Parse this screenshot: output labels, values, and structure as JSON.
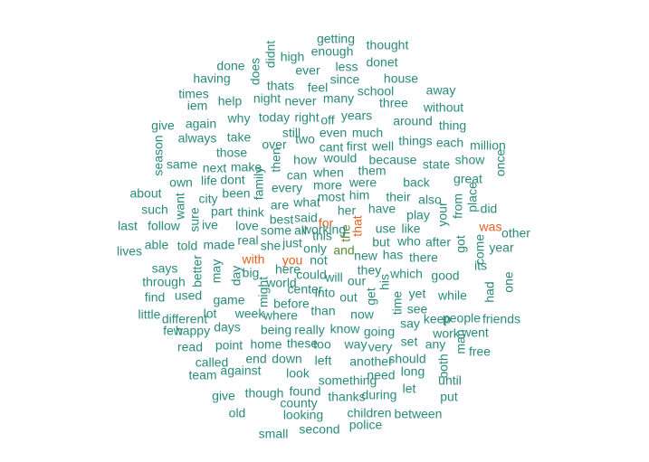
{
  "chart_data": {
    "type": "wordcloud",
    "colors": {
      "primary": "#2a8a7a",
      "secondary": "#5a8a3a",
      "highlight": "#e06020"
    },
    "words": [
      {
        "text": "getting",
        "tier": "primary"
      },
      {
        "text": "didnt",
        "tier": "primary"
      },
      {
        "text": "high",
        "tier": "primary"
      },
      {
        "text": "enough",
        "tier": "primary"
      },
      {
        "text": "thought",
        "tier": "primary"
      },
      {
        "text": "does",
        "tier": "primary"
      },
      {
        "text": "done",
        "tier": "primary"
      },
      {
        "text": "ever",
        "tier": "primary"
      },
      {
        "text": "less",
        "tier": "primary"
      },
      {
        "text": "donet",
        "tier": "primary"
      },
      {
        "text": "having",
        "tier": "primary"
      },
      {
        "text": "thats",
        "tier": "primary"
      },
      {
        "text": "feel",
        "tier": "primary"
      },
      {
        "text": "since",
        "tier": "primary"
      },
      {
        "text": "house",
        "tier": "primary"
      },
      {
        "text": "times",
        "tier": "primary"
      },
      {
        "text": "school",
        "tier": "primary"
      },
      {
        "text": "away",
        "tier": "primary"
      },
      {
        "text": "iem",
        "tier": "primary"
      },
      {
        "text": "help",
        "tier": "primary"
      },
      {
        "text": "night",
        "tier": "primary"
      },
      {
        "text": "never",
        "tier": "primary"
      },
      {
        "text": "many",
        "tier": "primary"
      },
      {
        "text": "three",
        "tier": "primary"
      },
      {
        "text": "without",
        "tier": "primary"
      },
      {
        "text": "why",
        "tier": "primary"
      },
      {
        "text": "today",
        "tier": "primary"
      },
      {
        "text": "right",
        "tier": "primary"
      },
      {
        "text": "off",
        "tier": "primary"
      },
      {
        "text": "years",
        "tier": "primary"
      },
      {
        "text": "give",
        "tier": "primary"
      },
      {
        "text": "again",
        "tier": "primary"
      },
      {
        "text": "around",
        "tier": "primary"
      },
      {
        "text": "thing",
        "tier": "primary"
      },
      {
        "text": "still",
        "tier": "primary"
      },
      {
        "text": "two",
        "tier": "primary"
      },
      {
        "text": "even",
        "tier": "primary"
      },
      {
        "text": "much",
        "tier": "primary"
      },
      {
        "text": "always",
        "tier": "primary"
      },
      {
        "text": "take",
        "tier": "primary"
      },
      {
        "text": "over",
        "tier": "primary"
      },
      {
        "text": "cant",
        "tier": "primary"
      },
      {
        "text": "first",
        "tier": "primary"
      },
      {
        "text": "well",
        "tier": "primary"
      },
      {
        "text": "things",
        "tier": "primary"
      },
      {
        "text": "each",
        "tier": "primary"
      },
      {
        "text": "million",
        "tier": "primary"
      },
      {
        "text": "season",
        "tier": "primary"
      },
      {
        "text": "those",
        "tier": "primary"
      },
      {
        "text": "then",
        "tier": "primary"
      },
      {
        "text": "how",
        "tier": "primary"
      },
      {
        "text": "would",
        "tier": "primary"
      },
      {
        "text": "because",
        "tier": "primary"
      },
      {
        "text": "show",
        "tier": "primary"
      },
      {
        "text": "same",
        "tier": "primary"
      },
      {
        "text": "next",
        "tier": "primary"
      },
      {
        "text": "make",
        "tier": "primary"
      },
      {
        "text": "state",
        "tier": "primary"
      },
      {
        "text": "can",
        "tier": "primary"
      },
      {
        "text": "when",
        "tier": "primary"
      },
      {
        "text": "them",
        "tier": "primary"
      },
      {
        "text": "once",
        "tier": "primary"
      },
      {
        "text": "own",
        "tier": "primary"
      },
      {
        "text": "life",
        "tier": "primary"
      },
      {
        "text": "dont",
        "tier": "primary"
      },
      {
        "text": "were",
        "tier": "primary"
      },
      {
        "text": "back",
        "tier": "primary"
      },
      {
        "text": "great",
        "tier": "primary"
      },
      {
        "text": "every",
        "tier": "primary"
      },
      {
        "text": "more",
        "tier": "primary"
      },
      {
        "text": "about",
        "tier": "primary"
      },
      {
        "text": "family",
        "tier": "primary"
      },
      {
        "text": "been",
        "tier": "primary"
      },
      {
        "text": "him",
        "tier": "primary"
      },
      {
        "text": "their",
        "tier": "primary"
      },
      {
        "text": "also",
        "tier": "primary"
      },
      {
        "text": "want",
        "tier": "primary"
      },
      {
        "text": "city",
        "tier": "primary"
      },
      {
        "text": "most",
        "tier": "primary"
      },
      {
        "text": "are",
        "tier": "primary"
      },
      {
        "text": "what",
        "tier": "primary"
      },
      {
        "text": "from",
        "tier": "primary"
      },
      {
        "text": "place",
        "tier": "primary"
      },
      {
        "text": "such",
        "tier": "primary"
      },
      {
        "text": "part",
        "tier": "primary"
      },
      {
        "text": "think",
        "tier": "primary"
      },
      {
        "text": "her",
        "tier": "primary"
      },
      {
        "text": "have",
        "tier": "primary"
      },
      {
        "text": "your",
        "tier": "primary"
      },
      {
        "text": "did",
        "tier": "primary"
      },
      {
        "text": "play",
        "tier": "primary"
      },
      {
        "text": "last",
        "tier": "primary"
      },
      {
        "text": "follow",
        "tier": "primary"
      },
      {
        "text": "sure",
        "tier": "primary"
      },
      {
        "text": "best",
        "tier": "primary"
      },
      {
        "text": "said",
        "tier": "primary"
      },
      {
        "text": "for",
        "tier": "highlight"
      },
      {
        "text": "that",
        "tier": "highlight"
      },
      {
        "text": "was",
        "tier": "highlight"
      },
      {
        "text": "ive",
        "tier": "primary"
      },
      {
        "text": "love",
        "tier": "primary"
      },
      {
        "text": "some",
        "tier": "primary"
      },
      {
        "text": "all",
        "tier": "primary"
      },
      {
        "text": "this",
        "tier": "primary"
      },
      {
        "text": "the",
        "tier": "secondary"
      },
      {
        "text": "use",
        "tier": "primary"
      },
      {
        "text": "like",
        "tier": "primary"
      },
      {
        "text": "other",
        "tier": "primary"
      },
      {
        "text": "real",
        "tier": "primary"
      },
      {
        "text": "she",
        "tier": "primary"
      },
      {
        "text": "just",
        "tier": "primary"
      },
      {
        "text": "but",
        "tier": "primary"
      },
      {
        "text": "who",
        "tier": "primary"
      },
      {
        "text": "after",
        "tier": "primary"
      },
      {
        "text": "got",
        "tier": "primary"
      },
      {
        "text": "come",
        "tier": "primary"
      },
      {
        "text": "lives",
        "tier": "primary"
      },
      {
        "text": "able",
        "tier": "primary"
      },
      {
        "text": "told",
        "tier": "primary"
      },
      {
        "text": "made",
        "tier": "primary"
      },
      {
        "text": "only",
        "tier": "primary"
      },
      {
        "text": "and",
        "tier": "secondary"
      },
      {
        "text": "you",
        "tier": "highlight"
      },
      {
        "text": "not",
        "tier": "primary"
      },
      {
        "text": "with",
        "tier": "highlight"
      },
      {
        "text": "new",
        "tier": "primary"
      },
      {
        "text": "has",
        "tier": "primary"
      },
      {
        "text": "there",
        "tier": "primary"
      },
      {
        "text": "year",
        "tier": "primary"
      },
      {
        "text": "says",
        "tier": "primary"
      },
      {
        "text": "better",
        "tier": "primary"
      },
      {
        "text": "may",
        "tier": "primary"
      },
      {
        "text": "here",
        "tier": "primary"
      },
      {
        "text": "they",
        "tier": "primary"
      },
      {
        "text": "its",
        "tier": "primary"
      },
      {
        "text": "big",
        "tier": "primary"
      },
      {
        "text": "day",
        "tier": "primary"
      },
      {
        "text": "could",
        "tier": "primary"
      },
      {
        "text": "will",
        "tier": "primary"
      },
      {
        "text": "his",
        "tier": "primary"
      },
      {
        "text": "which",
        "tier": "primary"
      },
      {
        "text": "good",
        "tier": "primary"
      },
      {
        "text": "through",
        "tier": "primary"
      },
      {
        "text": "world",
        "tier": "primary"
      },
      {
        "text": "our",
        "tier": "primary"
      },
      {
        "text": "one",
        "tier": "primary"
      },
      {
        "text": "center",
        "tier": "primary"
      },
      {
        "text": "had",
        "tier": "primary"
      },
      {
        "text": "find",
        "tier": "primary"
      },
      {
        "text": "used",
        "tier": "primary"
      },
      {
        "text": "might",
        "tier": "primary"
      },
      {
        "text": "into",
        "tier": "primary"
      },
      {
        "text": "out",
        "tier": "primary"
      },
      {
        "text": "get",
        "tier": "primary"
      },
      {
        "text": "yet",
        "tier": "primary"
      },
      {
        "text": "while",
        "tier": "primary"
      },
      {
        "text": "game",
        "tier": "primary"
      },
      {
        "text": "before",
        "tier": "primary"
      },
      {
        "text": "time",
        "tier": "primary"
      },
      {
        "text": "see",
        "tier": "primary"
      },
      {
        "text": "little",
        "tier": "primary"
      },
      {
        "text": "different",
        "tier": "primary"
      },
      {
        "text": "lot",
        "tier": "primary"
      },
      {
        "text": "week",
        "tier": "primary"
      },
      {
        "text": "where",
        "tier": "primary"
      },
      {
        "text": "than",
        "tier": "primary"
      },
      {
        "text": "now",
        "tier": "primary"
      },
      {
        "text": "people",
        "tier": "primary"
      },
      {
        "text": "keep",
        "tier": "primary"
      },
      {
        "text": "friends",
        "tier": "primary"
      },
      {
        "text": "say",
        "tier": "primary"
      },
      {
        "text": "few",
        "tier": "primary"
      },
      {
        "text": "happy",
        "tier": "primary"
      },
      {
        "text": "days",
        "tier": "primary"
      },
      {
        "text": "being",
        "tier": "primary"
      },
      {
        "text": "really",
        "tier": "primary"
      },
      {
        "text": "know",
        "tier": "primary"
      },
      {
        "text": "going",
        "tier": "primary"
      },
      {
        "text": "work",
        "tier": "primary"
      },
      {
        "text": "went",
        "tier": "primary"
      },
      {
        "text": "read",
        "tier": "primary"
      },
      {
        "text": "point",
        "tier": "primary"
      },
      {
        "text": "home",
        "tier": "primary"
      },
      {
        "text": "these",
        "tier": "primary"
      },
      {
        "text": "too",
        "tier": "primary"
      },
      {
        "text": "way",
        "tier": "primary"
      },
      {
        "text": "very",
        "tier": "primary"
      },
      {
        "text": "set",
        "tier": "primary"
      },
      {
        "text": "any",
        "tier": "primary"
      },
      {
        "text": "man",
        "tier": "primary"
      },
      {
        "text": "free",
        "tier": "primary"
      },
      {
        "text": "called",
        "tier": "primary"
      },
      {
        "text": "end",
        "tier": "primary"
      },
      {
        "text": "down",
        "tier": "primary"
      },
      {
        "text": "left",
        "tier": "primary"
      },
      {
        "text": "another",
        "tier": "primary"
      },
      {
        "text": "should",
        "tier": "primary"
      },
      {
        "text": "both",
        "tier": "primary"
      },
      {
        "text": "team",
        "tier": "primary"
      },
      {
        "text": "against",
        "tier": "primary"
      },
      {
        "text": "look",
        "tier": "primary"
      },
      {
        "text": "something",
        "tier": "primary"
      },
      {
        "text": "need",
        "tier": "primary"
      },
      {
        "text": "long",
        "tier": "primary"
      },
      {
        "text": "until",
        "tier": "primary"
      },
      {
        "text": "give",
        "tier": "primary"
      },
      {
        "text": "though",
        "tier": "primary"
      },
      {
        "text": "found",
        "tier": "primary"
      },
      {
        "text": "thanks",
        "tier": "primary"
      },
      {
        "text": "during",
        "tier": "primary"
      },
      {
        "text": "let",
        "tier": "primary"
      },
      {
        "text": "put",
        "tier": "primary"
      },
      {
        "text": "county",
        "tier": "primary"
      },
      {
        "text": "old",
        "tier": "primary"
      },
      {
        "text": "looking",
        "tier": "primary"
      },
      {
        "text": "children",
        "tier": "primary"
      },
      {
        "text": "between",
        "tier": "primary"
      },
      {
        "text": "police",
        "tier": "primary"
      },
      {
        "text": "second",
        "tier": "primary"
      },
      {
        "text": "small",
        "tier": "primary"
      },
      {
        "text": "working",
        "tier": "primary"
      }
    ]
  }
}
